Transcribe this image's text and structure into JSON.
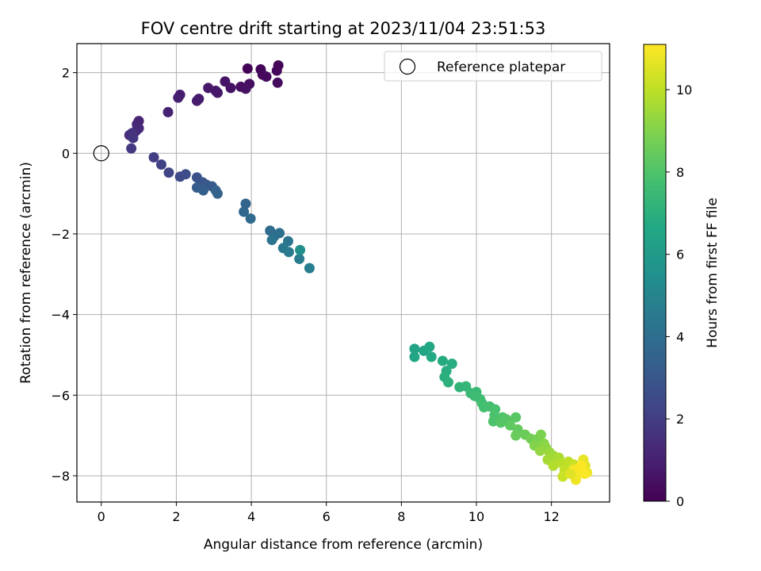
{
  "chart_data": {
    "type": "scatter",
    "title": "FOV centre drift starting at 2023/11/04 23:51:53",
    "xlabel": "Angular distance from reference (arcmin)",
    "ylabel": "Rotation from reference (arcmin)",
    "xlim": [
      -0.65,
      13.55
    ],
    "ylim": [
      -8.65,
      2.72
    ],
    "xticks": [
      0,
      2,
      4,
      6,
      8,
      10,
      12
    ],
    "yticks": [
      -8,
      -6,
      -4,
      -2,
      0,
      2
    ],
    "xtick_labels": [
      "0",
      "2",
      "4",
      "6",
      "8",
      "10",
      "12"
    ],
    "ytick_labels": [
      "−8",
      "−6",
      "−4",
      "−2",
      "0",
      "2"
    ],
    "grid": true,
    "legend": {
      "placement": "top-right",
      "entries": [
        {
          "label": "Reference platepar",
          "marker": "open-circle"
        }
      ]
    },
    "reference_point": {
      "x": 0,
      "y": 0
    },
    "colorbar": {
      "label": "Hours from first FF file",
      "colormap": "viridis",
      "range": [
        0,
        11.1
      ],
      "ticks": [
        0,
        2,
        4,
        6,
        8,
        10
      ],
      "tick_labels": [
        "0",
        "2",
        "4",
        "6",
        "8",
        "10"
      ]
    },
    "colormap_stops": [
      "#440154",
      "#482475",
      "#414487",
      "#355f8d",
      "#2a788e",
      "#21918c",
      "#22a884",
      "#44bf70",
      "#7ad151",
      "#bddf26",
      "#fde725"
    ],
    "points": [
      [
        3.9,
        2.1,
        0.05
      ],
      [
        4.25,
        2.08,
        0.1
      ],
      [
        4.72,
        2.18,
        0.15
      ],
      [
        4.68,
        2.05,
        0.2
      ],
      [
        4.3,
        1.95,
        0.25
      ],
      [
        4.4,
        1.9,
        0.3
      ],
      [
        4.7,
        1.75,
        0.35
      ],
      [
        3.95,
        1.72,
        0.4
      ],
      [
        3.72,
        1.65,
        0.45
      ],
      [
        3.85,
        1.6,
        0.5
      ],
      [
        3.45,
        1.62,
        0.55
      ],
      [
        3.3,
        1.78,
        0.6
      ],
      [
        3.05,
        1.55,
        0.65
      ],
      [
        3.1,
        1.5,
        0.7
      ],
      [
        2.85,
        1.62,
        0.75
      ],
      [
        2.6,
        1.35,
        0.8
      ],
      [
        2.55,
        1.3,
        0.85
      ],
      [
        2.1,
        1.45,
        0.9
      ],
      [
        2.05,
        1.38,
        0.95
      ],
      [
        1.78,
        1.02,
        1.0
      ],
      [
        1.0,
        0.8,
        1.1
      ],
      [
        0.95,
        0.72,
        1.2
      ],
      [
        1.0,
        0.62,
        1.3
      ],
      [
        0.92,
        0.55,
        1.4
      ],
      [
        0.75,
        0.45,
        1.5
      ],
      [
        0.82,
        0.5,
        1.6
      ],
      [
        0.85,
        0.38,
        1.7
      ],
      [
        0.8,
        0.12,
        1.8
      ],
      [
        1.4,
        -0.1,
        2.0
      ],
      [
        1.6,
        -0.28,
        2.15
      ],
      [
        1.8,
        -0.48,
        2.3
      ],
      [
        2.1,
        -0.58,
        2.45
      ],
      [
        2.25,
        -0.52,
        2.6
      ],
      [
        2.55,
        -0.6,
        2.75
      ],
      [
        2.7,
        -0.72,
        2.9
      ],
      [
        2.8,
        -0.78,
        3.0
      ],
      [
        2.95,
        -0.82,
        3.1
      ],
      [
        2.55,
        -0.85,
        3.2
      ],
      [
        2.72,
        -0.92,
        3.3
      ],
      [
        3.05,
        -0.92,
        3.4
      ],
      [
        3.1,
        -1.0,
        3.5
      ],
      [
        3.85,
        -1.25,
        3.6
      ],
      [
        3.8,
        -1.45,
        3.7
      ],
      [
        3.98,
        -1.62,
        3.8
      ],
      [
        4.5,
        -1.92,
        3.9
      ],
      [
        4.62,
        -2.05,
        4.0
      ],
      [
        4.75,
        -1.98,
        4.1
      ],
      [
        4.55,
        -2.15,
        4.2
      ],
      [
        4.98,
        -2.18,
        4.3
      ],
      [
        4.85,
        -2.35,
        4.4
      ],
      [
        5.0,
        -2.45,
        4.5
      ],
      [
        5.28,
        -2.62,
        4.6
      ],
      [
        5.55,
        -2.85,
        4.7
      ],
      [
        5.3,
        -2.4,
        5.5
      ],
      [
        8.35,
        -4.85,
        6.4
      ],
      [
        8.6,
        -4.9,
        6.5
      ],
      [
        8.35,
        -5.05,
        6.55
      ],
      [
        8.75,
        -4.8,
        6.6
      ],
      [
        8.8,
        -5.05,
        6.7
      ],
      [
        9.1,
        -5.15,
        6.8
      ],
      [
        9.35,
        -5.22,
        6.85
      ],
      [
        9.2,
        -5.4,
        6.9
      ],
      [
        9.15,
        -5.55,
        7.0
      ],
      [
        9.25,
        -5.68,
        7.05
      ],
      [
        9.55,
        -5.8,
        7.2
      ],
      [
        9.72,
        -5.78,
        7.3
      ],
      [
        9.85,
        -5.95,
        7.4
      ],
      [
        10.0,
        -5.92,
        7.5
      ],
      [
        9.95,
        -6.02,
        7.55
      ],
      [
        10.1,
        -6.1,
        7.6
      ],
      [
        10.15,
        -6.2,
        7.7
      ],
      [
        10.2,
        -6.3,
        7.75
      ],
      [
        10.35,
        -6.28,
        7.8
      ],
      [
        10.5,
        -6.35,
        7.85
      ],
      [
        10.48,
        -6.5,
        7.9
      ],
      [
        10.45,
        -6.65,
        7.95
      ],
      [
        10.7,
        -6.55,
        8.0
      ],
      [
        10.8,
        -6.6,
        8.1
      ],
      [
        10.65,
        -6.68,
        8.15
      ],
      [
        11.05,
        -6.55,
        8.2
      ],
      [
        10.9,
        -6.75,
        8.3
      ],
      [
        11.1,
        -6.85,
        8.4
      ],
      [
        11.05,
        -7.0,
        8.5
      ],
      [
        11.3,
        -6.98,
        8.6
      ],
      [
        11.45,
        -7.08,
        8.7
      ],
      [
        11.6,
        -7.1,
        8.8
      ],
      [
        11.72,
        -6.98,
        8.9
      ],
      [
        11.55,
        -7.25,
        9.0
      ],
      [
        11.8,
        -7.2,
        9.1
      ],
      [
        11.85,
        -7.3,
        9.2
      ],
      [
        11.7,
        -7.38,
        9.3
      ],
      [
        11.95,
        -7.42,
        9.4
      ],
      [
        12.05,
        -7.5,
        9.5
      ],
      [
        11.9,
        -7.6,
        9.6
      ],
      [
        12.2,
        -7.55,
        9.7
      ],
      [
        12.05,
        -7.75,
        9.8
      ],
      [
        12.3,
        -7.7,
        9.9
      ],
      [
        12.45,
        -7.65,
        10.0
      ],
      [
        12.35,
        -7.85,
        10.1
      ],
      [
        12.6,
        -7.72,
        10.2
      ],
      [
        12.55,
        -7.95,
        10.3
      ],
      [
        12.72,
        -7.8,
        10.4
      ],
      [
        12.8,
        -7.88,
        10.5
      ],
      [
        12.9,
        -7.75,
        10.6
      ],
      [
        12.85,
        -7.6,
        10.7
      ],
      [
        12.95,
        -7.92,
        10.8
      ],
      [
        12.65,
        -8.1,
        10.85
      ],
      [
        12.7,
        -7.95,
        10.9
      ],
      [
        12.6,
        -7.85,
        10.95
      ],
      [
        12.75,
        -7.85,
        11.0
      ],
      [
        12.88,
        -7.95,
        11.05
      ],
      [
        12.8,
        -7.75,
        11.1
      ],
      [
        12.3,
        -8.02,
        10.2
      ],
      [
        12.5,
        -7.95,
        10.6
      ]
    ]
  }
}
